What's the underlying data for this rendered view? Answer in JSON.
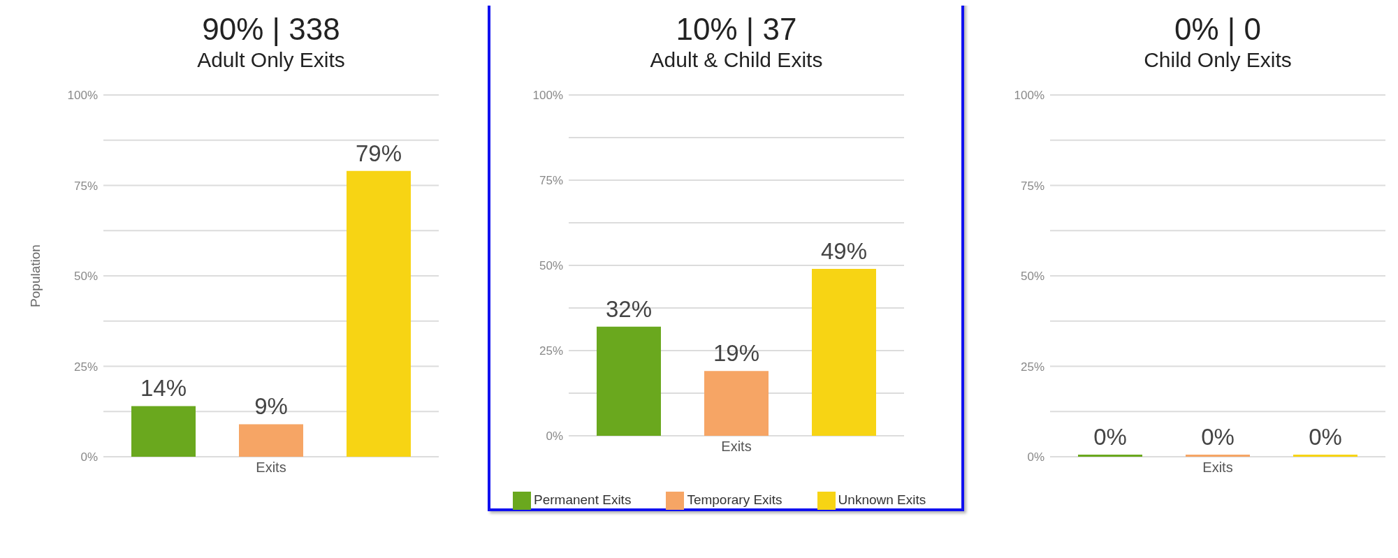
{
  "chart_data": [
    {
      "type": "bar",
      "title": "90% | 338",
      "subtitle": "Adult Only Exits",
      "ylabel": "Population",
      "categories": [
        "Exits"
      ],
      "series": [
        {
          "color": "#6aa81e",
          "values": [
            14
          ],
          "value_labels": [
            "14%"
          ]
        },
        {
          "color": "#f6a565",
          "values": [
            9
          ],
          "value_labels": [
            "9%"
          ]
        },
        {
          "color": "#f7d414",
          "values": [
            79
          ],
          "value_labels": [
            "79%"
          ]
        }
      ],
      "ylim": [
        0,
        100
      ],
      "yticks": [
        {
          "value": 0,
          "label": "0%"
        },
        {
          "value": 12.5,
          "label": null
        },
        {
          "value": 25,
          "label": "25%"
        },
        {
          "value": 37.5,
          "label": null
        },
        {
          "value": 50,
          "label": "50%"
        },
        {
          "value": 62.5,
          "label": null
        },
        {
          "value": 75,
          "label": "75%"
        },
        {
          "value": 87.5,
          "label": null
        },
        {
          "value": 100,
          "label": "100%"
        }
      ],
      "grid": "y"
    },
    {
      "type": "bar",
      "title": "10% | 37",
      "subtitle": "Adult & Child Exits",
      "categories": [
        "Exits"
      ],
      "series": [
        {
          "name": "Permanent Exits",
          "color": "#6aa81e",
          "values": [
            32
          ],
          "value_labels": [
            "32%"
          ]
        },
        {
          "name": "Temporary Exits",
          "color": "#f6a565",
          "values": [
            19
          ],
          "value_labels": [
            "19%"
          ]
        },
        {
          "name": "Unknown Exits",
          "color": "#f7d414",
          "values": [
            49
          ],
          "value_labels": [
            "49%"
          ]
        }
      ],
      "ylim": [
        0,
        100
      ],
      "yticks": [
        {
          "value": 0,
          "label": "0%"
        },
        {
          "value": 12.5,
          "label": null
        },
        {
          "value": 25,
          "label": "25%"
        },
        {
          "value": 37.5,
          "label": null
        },
        {
          "value": 50,
          "label": "50%"
        },
        {
          "value": 62.5,
          "label": null
        },
        {
          "value": 75,
          "label": "75%"
        },
        {
          "value": 87.5,
          "label": null
        },
        {
          "value": 100,
          "label": "100%"
        }
      ],
      "grid": "y",
      "legend": "bottom"
    },
    {
      "type": "bar",
      "title": "0% | 0",
      "subtitle": "Child Only Exits",
      "categories": [
        "Exits"
      ],
      "series": [
        {
          "color": "#6aa81e",
          "values": [
            0
          ],
          "value_labels": [
            "0%"
          ]
        },
        {
          "color": "#f6a565",
          "values": [
            0
          ],
          "value_labels": [
            "0%"
          ]
        },
        {
          "color": "#f7d414",
          "values": [
            0
          ],
          "value_labels": [
            "0%"
          ]
        }
      ],
      "ylim": [
        0,
        100
      ],
      "yticks": [
        {
          "value": 0,
          "label": "0%"
        },
        {
          "value": 12.5,
          "label": null
        },
        {
          "value": 25,
          "label": "25%"
        },
        {
          "value": 37.5,
          "label": null
        },
        {
          "value": 50,
          "label": "50%"
        },
        {
          "value": 62.5,
          "label": null
        },
        {
          "value": 75,
          "label": "75%"
        },
        {
          "value": 87.5,
          "label": null
        },
        {
          "value": 100,
          "label": "100%"
        }
      ],
      "grid": "y"
    }
  ]
}
